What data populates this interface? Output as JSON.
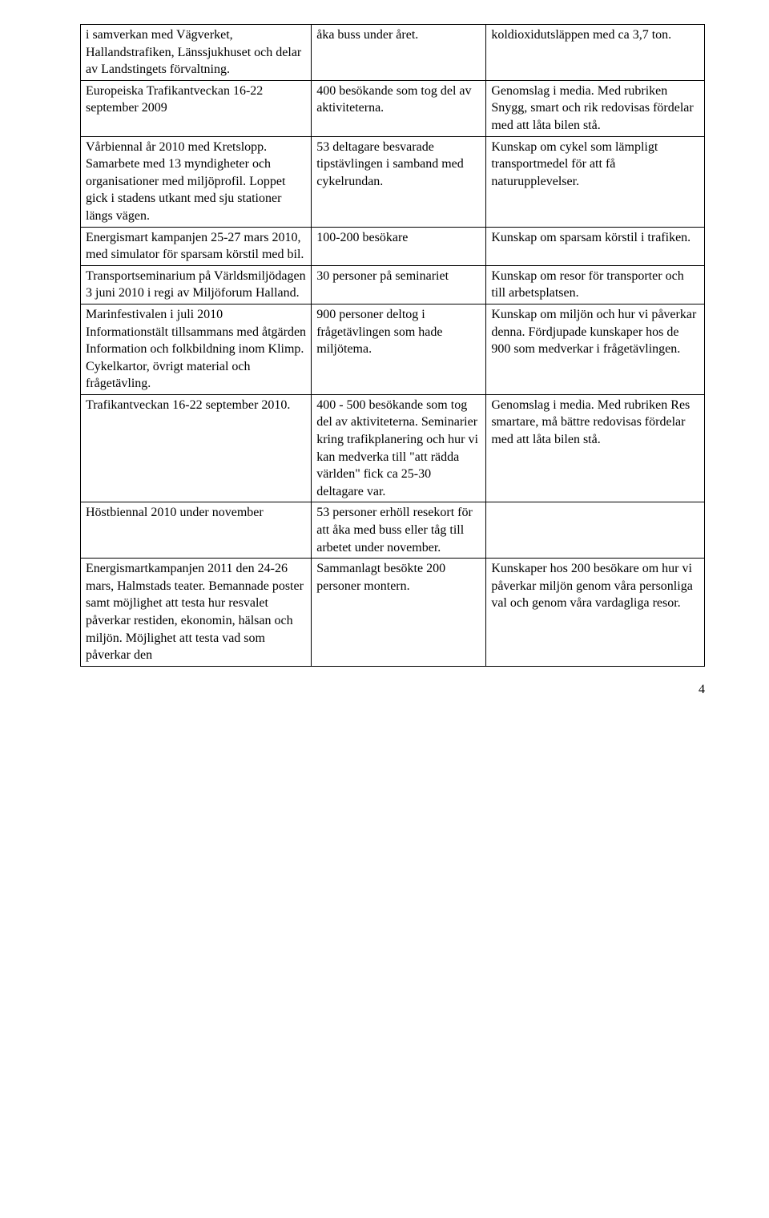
{
  "rows": [
    {
      "c1": "i samverkan med Vägverket, Hallandstrafiken, Länssjukhuset och delar av Landstingets förvaltning.",
      "c2": "åka buss under året.",
      "c3": "koldioxidutsläppen med ca 3,7 ton."
    },
    {
      "c1": "Europeiska Trafikantveckan 16-22 september 2009",
      "c2": "400 besökande som tog del av aktiviteterna.",
      "c3": "Genomslag i media. Med rubriken Snygg, smart och rik redovisas fördelar med att låta bilen stå."
    },
    {
      "c1": "Vårbiennal år 2010 med Kretslopp. Samarbete med 13 myndigheter och organisationer med miljöprofil. Loppet gick i stadens utkant med sju stationer längs vägen.",
      "c2": "53 deltagare besvarade tipstävlingen i samband med cykelrundan.",
      "c3": "Kunskap om cykel som lämpligt transportmedel för att få naturupplevelser."
    },
    {
      "c1": "Energismart kampanjen 25-27 mars 2010, med simulator för sparsam körstil med bil.",
      "c2": "100-200 besökare",
      "c3": "Kunskap om sparsam körstil i trafiken."
    },
    {
      "c1": "Transportseminarium på Världsmiljödagen 3 juni 2010 i regi av Miljöforum Halland.",
      "c2": "30 personer på seminariet",
      "c3": "Kunskap om resor för transporter och till arbetsplatsen."
    },
    {
      "c1": "Marinfestivalen i juli 2010 Informationstält tillsammans med åtgärden Information och folkbildning inom Klimp. Cykelkartor, övrigt material och frågetävling.",
      "c2": "900 personer deltog i frågetävlingen som hade miljötema.",
      "c3": "Kunskap om miljön och hur vi påverkar denna. Fördjupade kunskaper hos de 900 som medverkar i frågetävlingen."
    },
    {
      "c1": "Trafikantveckan 16-22 september 2010.",
      "c2": "400 - 500 besökande som tog del av aktiviteterna. Seminarier kring trafikplanering och hur vi kan medverka till \"att rädda världen\" fick ca 25-30 deltagare var.",
      "c3": "Genomslag i media. Med rubriken Res smartare, må bättre redovisas fördelar med att låta bilen stå."
    },
    {
      "c1": "Höstbiennal 2010 under november",
      "c2": "53 personer erhöll resekort för att åka med buss eller tåg till arbetet under november.",
      "c3": ""
    },
    {
      "c1": "Energismartkampanjen 2011 den 24-26 mars, Halmstads teater. Bemannade poster samt möjlighet att testa hur resvalet påverkar restiden, ekonomin, hälsan och miljön. Möjlighet att testa vad som påverkar den",
      "c2": "Sammanlagt besökte 200 personer montern.",
      "c3": "Kunskaper hos 200 besökare om hur vi påverkar miljön genom våra personliga val och genom våra vardagliga resor."
    }
  ],
  "pageNumber": "4"
}
